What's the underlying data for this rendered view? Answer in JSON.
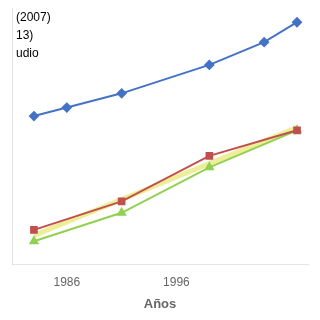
{
  "chart_data": {
    "type": "line",
    "xlabel": "Años",
    "annotations": [
      "(2007)",
      "13)",
      "udio"
    ],
    "series": [
      {
        "x": [
          1983,
          2007
        ],
        "values": [
          20,
          58
        ],
        "color": "#EEEE99",
        "marker": "none"
      },
      {
        "x": [
          1983,
          1991,
          1999,
          2007
        ],
        "values": [
          18,
          28,
          44,
          57
        ],
        "color": "#92D050",
        "marker": "triangle"
      },
      {
        "x": [
          1983,
          1991,
          1999,
          2007
        ],
        "values": [
          22,
          32,
          48,
          57
        ],
        "color": "#C0504D",
        "marker": "square"
      },
      {
        "x": [
          1983,
          1986,
          1991,
          1999,
          2004,
          2007
        ],
        "values": [
          62,
          65,
          70,
          80,
          88,
          95
        ],
        "color": "#4472C4",
        "marker": "diamond"
      }
    ],
    "xlim": [
      1981,
      2008
    ],
    "ylim": [
      10,
      100
    ],
    "xticks": [
      1986,
      1996
    ],
    "yticks": [],
    "tick_labels": "x",
    "grid": false
  }
}
